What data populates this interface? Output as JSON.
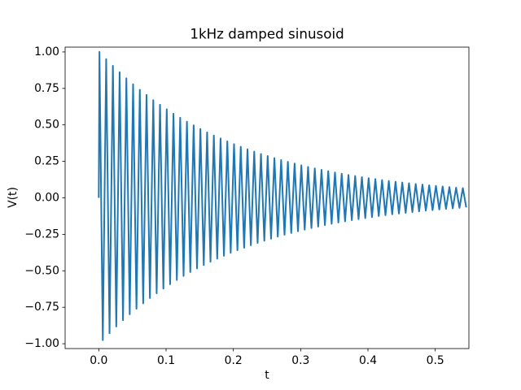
{
  "chart_data": {
    "type": "line",
    "title": "1kHz damped sinusoid",
    "xlabel": "t",
    "ylabel": "V(t)",
    "xlim": [
      -0.05,
      0.55
    ],
    "ylim": [
      -1.033,
      1.033
    ],
    "xticks": [
      {
        "value": 0,
        "label": "0.0"
      },
      0.1,
      0.2,
      0.3,
      0.4,
      0.5
    ],
    "yticks": [
      {
        "value": -1,
        "label": "−1.00"
      },
      {
        "value": -0.75,
        "label": "−0.75"
      },
      {
        "value": -0.5,
        "label": "−0.50"
      },
      {
        "value": -0.25,
        "label": "−0.25"
      },
      {
        "value": 0,
        "label": "0.00"
      },
      0.25,
      {
        "value": 0.5,
        "label": "0.50"
      },
      0.75,
      {
        "value": 1,
        "label": "1.00"
      }
    ],
    "x": [
      0,
      0.001,
      0.006,
      0.011,
      0.016,
      0.021,
      0.026,
      0.031,
      0.036,
      0.041,
      0.046,
      0.051,
      0.056,
      0.061,
      0.066,
      0.071,
      0.076,
      0.081,
      0.086,
      0.091,
      0.096,
      0.101,
      0.106,
      0.111,
      0.116,
      0.121,
      0.126,
      0.131,
      0.136,
      0.141,
      0.146,
      0.151,
      0.156,
      0.161,
      0.166,
      0.171,
      0.176,
      0.181,
      0.186,
      0.191,
      0.196,
      0.201,
      0.206,
      0.211,
      0.216,
      0.221,
      0.226,
      0.231,
      0.236,
      0.241,
      0.246,
      0.251,
      0.256,
      0.261,
      0.266,
      0.271,
      0.276,
      0.281,
      0.286,
      0.291,
      0.296,
      0.301,
      0.306,
      0.311,
      0.316,
      0.321,
      0.326,
      0.331,
      0.336,
      0.341,
      0.346,
      0.351,
      0.356,
      0.361,
      0.366,
      0.371,
      0.376,
      0.381,
      0.386,
      0.391,
      0.396,
      0.401,
      0.406,
      0.411,
      0.416,
      0.421,
      0.426,
      0.431,
      0.436,
      0.441,
      0.446,
      0.451,
      0.456,
      0.461,
      0.466,
      0.471,
      0.476,
      0.481,
      0.486,
      0.491,
      0.496,
      0.501,
      0.506,
      0.511,
      0.516,
      0.521,
      0.526,
      0.531,
      0.536,
      0.541,
      0.546
    ],
    "series": [
      {
        "color": "#1f77b4",
        "values": [
          0,
          1.0,
          -0.975,
          0.951,
          -0.928,
          0.905,
          -0.882,
          0.861,
          -0.839,
          0.819,
          -0.798,
          0.779,
          -0.76,
          0.741,
          -0.723,
          0.705,
          -0.687,
          0.67,
          -0.654,
          0.638,
          -0.622,
          0.607,
          -0.592,
          0.577,
          -0.563,
          0.549,
          -0.535,
          0.522,
          -0.509,
          0.497,
          -0.484,
          0.472,
          -0.461,
          0.449,
          -0.438,
          0.427,
          -0.417,
          0.407,
          -0.397,
          0.387,
          -0.377,
          0.368,
          -0.359,
          0.35,
          -0.342,
          0.333,
          -0.325,
          0.317,
          -0.309,
          0.301,
          -0.294,
          0.287,
          -0.28,
          0.273,
          -0.266,
          0.259,
          -0.253,
          0.247,
          -0.241,
          0.235,
          -0.229,
          0.223,
          -0.218,
          0.212,
          -0.207,
          0.202,
          -0.197,
          0.192,
          -0.187,
          0.183,
          -0.178,
          0.174,
          -0.169,
          0.165,
          -0.161,
          0.157,
          -0.153,
          0.15,
          -0.146,
          0.142,
          -0.139,
          0.135,
          -0.132,
          0.129,
          -0.125,
          0.122,
          -0.119,
          0.116,
          -0.113,
          0.111,
          -0.108,
          0.105,
          -0.103,
          0.1,
          -0.098,
          0.095,
          -0.093,
          0.091,
          -0.088,
          0.086,
          -0.084,
          0.082,
          -0.08,
          0.078,
          -0.076,
          0.074,
          -0.072,
          0.07,
          -0.069,
          0.067,
          -0.065
        ]
      }
    ]
  }
}
